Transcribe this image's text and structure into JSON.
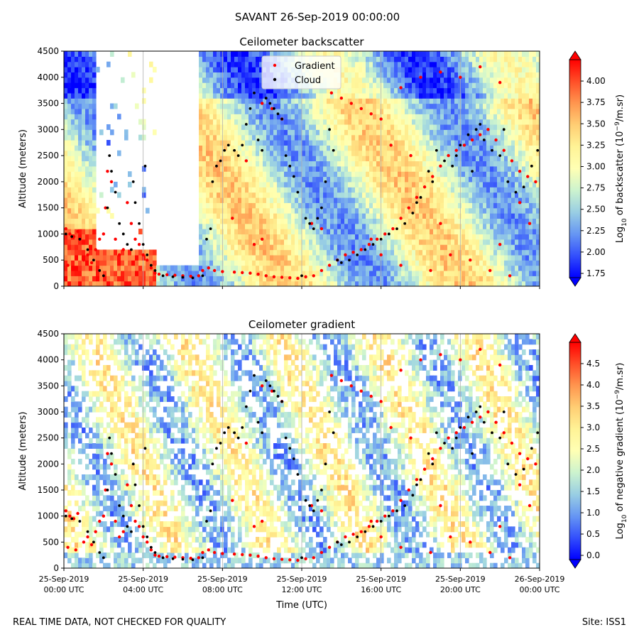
{
  "figure": {
    "suptitle": "SAVANT 26-Sep-2019 00:00:00",
    "footer_left": "REAL TIME DATA, NOT CHECKED FOR QUALITY",
    "footer_right": "Site: ISS1"
  },
  "chart_data": [
    {
      "type": "heatmap",
      "title": "Ceilometer backscatter",
      "xlabel": "",
      "ylabel": "Altitude (meters)",
      "ylim": [
        0,
        4500
      ],
      "yticks": [
        0,
        500,
        1000,
        1500,
        2000,
        2500,
        3000,
        3500,
        4000,
        4500
      ],
      "xlim_hours": [
        0,
        24
      ],
      "xticks": [
        {
          "date": "25-Sep-2019",
          "time": "00:00 UTC"
        },
        {
          "date": "25-Sep-2019",
          "time": "04:00 UTC"
        },
        {
          "date": "25-Sep-2019",
          "time": "08:00 UTC"
        },
        {
          "date": "25-Sep-2019",
          "time": "12:00 UTC"
        },
        {
          "date": "25-Sep-2019",
          "time": "16:00 UTC"
        },
        {
          "date": "25-Sep-2019",
          "time": "20:00 UTC"
        },
        {
          "date": "26-Sep-2019",
          "time": "00:00 UTC"
        }
      ],
      "colorbar": {
        "label_parts": [
          "Log",
          "10",
          " of backscatter (10",
          "−9",
          "/m.sr)"
        ],
        "range": [
          1.7,
          4.25
        ],
        "ticks": [
          1.75,
          2.0,
          2.25,
          2.5,
          2.75,
          3.0,
          3.25,
          3.5,
          3.75,
          4.0
        ],
        "tick_labels": [
          "1.75",
          "2.00",
          "2.25",
          "2.50",
          "2.75",
          "3.00",
          "3.25",
          "3.50",
          "3.75",
          "4.00"
        ],
        "colormap": "rainbow",
        "extend": "both"
      },
      "legend": {
        "placement": "top-center",
        "entries": [
          {
            "label": "Gradient",
            "color": "#ff0000"
          },
          {
            "label": "Cloud",
            "color": "#000000"
          }
        ]
      },
      "grid": "vertical"
    },
    {
      "type": "heatmap",
      "title": "Ceilometer gradient",
      "xlabel": "Time (UTC)",
      "ylabel": "Altitude (meters)",
      "ylim": [
        0,
        4500
      ],
      "yticks": [
        0,
        500,
        1000,
        1500,
        2000,
        2500,
        3000,
        3500,
        4000,
        4500
      ],
      "xlim_hours": [
        0,
        24
      ],
      "xticks": [
        {
          "date": "25-Sep-2019",
          "time": "00:00 UTC"
        },
        {
          "date": "25-Sep-2019",
          "time": "04:00 UTC"
        },
        {
          "date": "25-Sep-2019",
          "time": "08:00 UTC"
        },
        {
          "date": "25-Sep-2019",
          "time": "12:00 UTC"
        },
        {
          "date": "25-Sep-2019",
          "time": "16:00 UTC"
        },
        {
          "date": "25-Sep-2019",
          "time": "20:00 UTC"
        },
        {
          "date": "26-Sep-2019",
          "time": "00:00 UTC"
        }
      ],
      "colorbar": {
        "label_parts": [
          "Log",
          "10",
          " of negative gradient (10",
          "−9",
          "/m.sr)"
        ],
        "range": [
          -0.1,
          5.0
        ],
        "ticks": [
          0,
          0.5,
          1.0,
          1.5,
          2.0,
          2.5,
          3.0,
          3.5,
          4.0,
          4.5
        ],
        "tick_labels": [
          "0.0",
          "0.5",
          "1.0",
          "1.5",
          "2.0",
          "2.5",
          "3.0",
          "3.5",
          "4.0",
          "4.5"
        ],
        "colormap": "rainbow",
        "extend": "both"
      },
      "grid": "vertical"
    }
  ],
  "series": {
    "gradient_points": [
      [
        0.1,
        1100
      ],
      [
        0.3,
        1000
      ],
      [
        0.5,
        950
      ],
      [
        0.7,
        1050
      ],
      [
        0.2,
        400
      ],
      [
        0.6,
        350
      ],
      [
        1.0,
        500
      ],
      [
        1.2,
        600
      ],
      [
        1.4,
        450
      ],
      [
        1.6,
        700
      ],
      [
        1.8,
        900
      ],
      [
        2.0,
        1000
      ],
      [
        2.1,
        1500
      ],
      [
        2.2,
        2200
      ],
      [
        2.4,
        2000
      ],
      [
        2.6,
        900
      ],
      [
        2.8,
        600
      ],
      [
        3.0,
        700
      ],
      [
        3.2,
        1600
      ],
      [
        3.4,
        1200
      ],
      [
        3.6,
        900
      ],
      [
        3.8,
        800
      ],
      [
        4.0,
        600
      ],
      [
        4.2,
        500
      ],
      [
        4.4,
        350
      ],
      [
        4.6,
        250
      ],
      [
        4.8,
        230
      ],
      [
        5.2,
        220
      ],
      [
        5.6,
        210
      ],
      [
        6.0,
        200
      ],
      [
        6.4,
        190
      ],
      [
        6.8,
        200
      ],
      [
        7.0,
        300
      ],
      [
        7.3,
        350
      ],
      [
        7.6,
        300
      ],
      [
        8.0,
        280
      ],
      [
        8.6,
        270
      ],
      [
        9.0,
        260
      ],
      [
        9.4,
        250
      ],
      [
        9.8,
        230
      ],
      [
        10.2,
        200
      ],
      [
        10.6,
        180
      ],
      [
        11.0,
        170
      ],
      [
        11.4,
        160
      ],
      [
        11.8,
        150
      ],
      [
        12.2,
        180
      ],
      [
        12.6,
        200
      ],
      [
        13.0,
        300
      ],
      [
        13.4,
        400
      ],
      [
        13.8,
        500
      ],
      [
        14.2,
        600
      ],
      [
        14.6,
        650
      ],
      [
        15.0,
        700
      ],
      [
        15.4,
        800
      ],
      [
        15.8,
        900
      ],
      [
        16.2,
        1000
      ],
      [
        16.6,
        1100
      ],
      [
        17.0,
        1300
      ],
      [
        17.4,
        1500
      ],
      [
        17.8,
        1700
      ],
      [
        18.2,
        1900
      ],
      [
        18.6,
        2100
      ],
      [
        19.0,
        2300
      ],
      [
        19.4,
        2500
      ],
      [
        19.8,
        2600
      ],
      [
        20.2,
        2700
      ],
      [
        20.6,
        2800
      ],
      [
        21.0,
        2900
      ],
      [
        21.4,
        3000
      ],
      [
        21.8,
        2800
      ],
      [
        22.2,
        2600
      ],
      [
        22.6,
        2400
      ],
      [
        23.0,
        2200
      ],
      [
        23.4,
        2100
      ],
      [
        23.8,
        2000
      ],
      [
        13.5,
        3700
      ],
      [
        14.0,
        3600
      ],
      [
        14.5,
        3500
      ],
      [
        15.0,
        3400
      ],
      [
        15.5,
        3300
      ],
      [
        16.0,
        3200
      ],
      [
        17.0,
        3800
      ],
      [
        18.0,
        4000
      ],
      [
        19.0,
        4100
      ],
      [
        20.0,
        4000
      ],
      [
        21.0,
        4200
      ],
      [
        22.0,
        3900
      ],
      [
        16.5,
        2700
      ],
      [
        17.5,
        2500
      ],
      [
        8.5,
        1300
      ],
      [
        9.2,
        2400
      ],
      [
        10.0,
        3500
      ],
      [
        10.5,
        3400
      ],
      [
        11.0,
        3200
      ],
      [
        9.6,
        800
      ],
      [
        10.0,
        900
      ],
      [
        12.5,
        1200
      ],
      [
        13.0,
        1100
      ],
      [
        15.5,
        900
      ],
      [
        16.0,
        600
      ],
      [
        17.0,
        400
      ],
      [
        18.5,
        300
      ],
      [
        19.5,
        600
      ],
      [
        20.5,
        500
      ],
      [
        21.5,
        300
      ],
      [
        22.5,
        200
      ],
      [
        23.5,
        1200
      ],
      [
        23.0,
        1600
      ],
      [
        22.0,
        800
      ],
      [
        19.0,
        1200
      ]
    ],
    "cloud_points": [
      [
        0.1,
        1000
      ],
      [
        0.4,
        950
      ],
      [
        0.8,
        900
      ],
      [
        1.2,
        700
      ],
      [
        1.5,
        500
      ],
      [
        1.8,
        300
      ],
      [
        2.0,
        200
      ],
      [
        2.2,
        1500
      ],
      [
        2.3,
        2500
      ],
      [
        2.4,
        2200
      ],
      [
        2.6,
        1800
      ],
      [
        2.8,
        1200
      ],
      [
        3.0,
        1000
      ],
      [
        3.2,
        800
      ],
      [
        3.4,
        700
      ],
      [
        3.5,
        2000
      ],
      [
        3.6,
        1600
      ],
      [
        3.8,
        1200
      ],
      [
        4.0,
        800
      ],
      [
        4.1,
        2300
      ],
      [
        4.2,
        600
      ],
      [
        4.4,
        400
      ],
      [
        4.6,
        300
      ],
      [
        5.0,
        200
      ],
      [
        5.5,
        180
      ],
      [
        6.0,
        170
      ],
      [
        6.5,
        160
      ],
      [
        7.0,
        200
      ],
      [
        7.2,
        900
      ],
      [
        7.4,
        1100
      ],
      [
        7.5,
        2000
      ],
      [
        7.7,
        2300
      ],
      [
        7.9,
        2400
      ],
      [
        8.1,
        2600
      ],
      [
        8.3,
        2700
      ],
      [
        8.6,
        2600
      ],
      [
        8.8,
        2500
      ],
      [
        9.0,
        2700
      ],
      [
        9.2,
        3100
      ],
      [
        9.4,
        3400
      ],
      [
        9.6,
        3700
      ],
      [
        9.8,
        2800
      ],
      [
        10.0,
        2600
      ],
      [
        10.2,
        3600
      ],
      [
        10.4,
        3500
      ],
      [
        10.6,
        3400
      ],
      [
        10.8,
        3300
      ],
      [
        11.0,
        3200
      ],
      [
        11.2,
        2500
      ],
      [
        11.4,
        2300
      ],
      [
        11.6,
        2100
      ],
      [
        11.8,
        1800
      ],
      [
        12.0,
        200
      ],
      [
        12.2,
        1300
      ],
      [
        12.4,
        1200
      ],
      [
        12.6,
        1100
      ],
      [
        12.8,
        1300
      ],
      [
        13.0,
        1500
      ],
      [
        13.2,
        2000
      ],
      [
        13.4,
        3000
      ],
      [
        13.6,
        2600
      ],
      [
        13.8,
        500
      ],
      [
        14.0,
        450
      ],
      [
        14.4,
        500
      ],
      [
        14.8,
        600
      ],
      [
        15.2,
        700
      ],
      [
        15.6,
        800
      ],
      [
        16.0,
        900
      ],
      [
        16.4,
        1000
      ],
      [
        16.8,
        1100
      ],
      [
        17.2,
        1200
      ],
      [
        17.6,
        1400
      ],
      [
        18.0,
        1700
      ],
      [
        18.4,
        2200
      ],
      [
        18.8,
        2600
      ],
      [
        19.2,
        2400
      ],
      [
        19.6,
        2300
      ],
      [
        20.0,
        2700
      ],
      [
        20.4,
        2900
      ],
      [
        20.8,
        3000
      ],
      [
        21.2,
        2800
      ],
      [
        21.6,
        2600
      ],
      [
        22.0,
        2500
      ],
      [
        22.4,
        2000
      ],
      [
        22.8,
        1800
      ],
      [
        23.2,
        1900
      ],
      [
        23.6,
        2300
      ],
      [
        23.9,
        2600
      ],
      [
        21.0,
        3100
      ],
      [
        22.2,
        3000
      ],
      [
        20.6,
        2200
      ],
      [
        19.8,
        2500
      ],
      [
        18.6,
        2000
      ],
      [
        17.8,
        1600
      ]
    ]
  }
}
